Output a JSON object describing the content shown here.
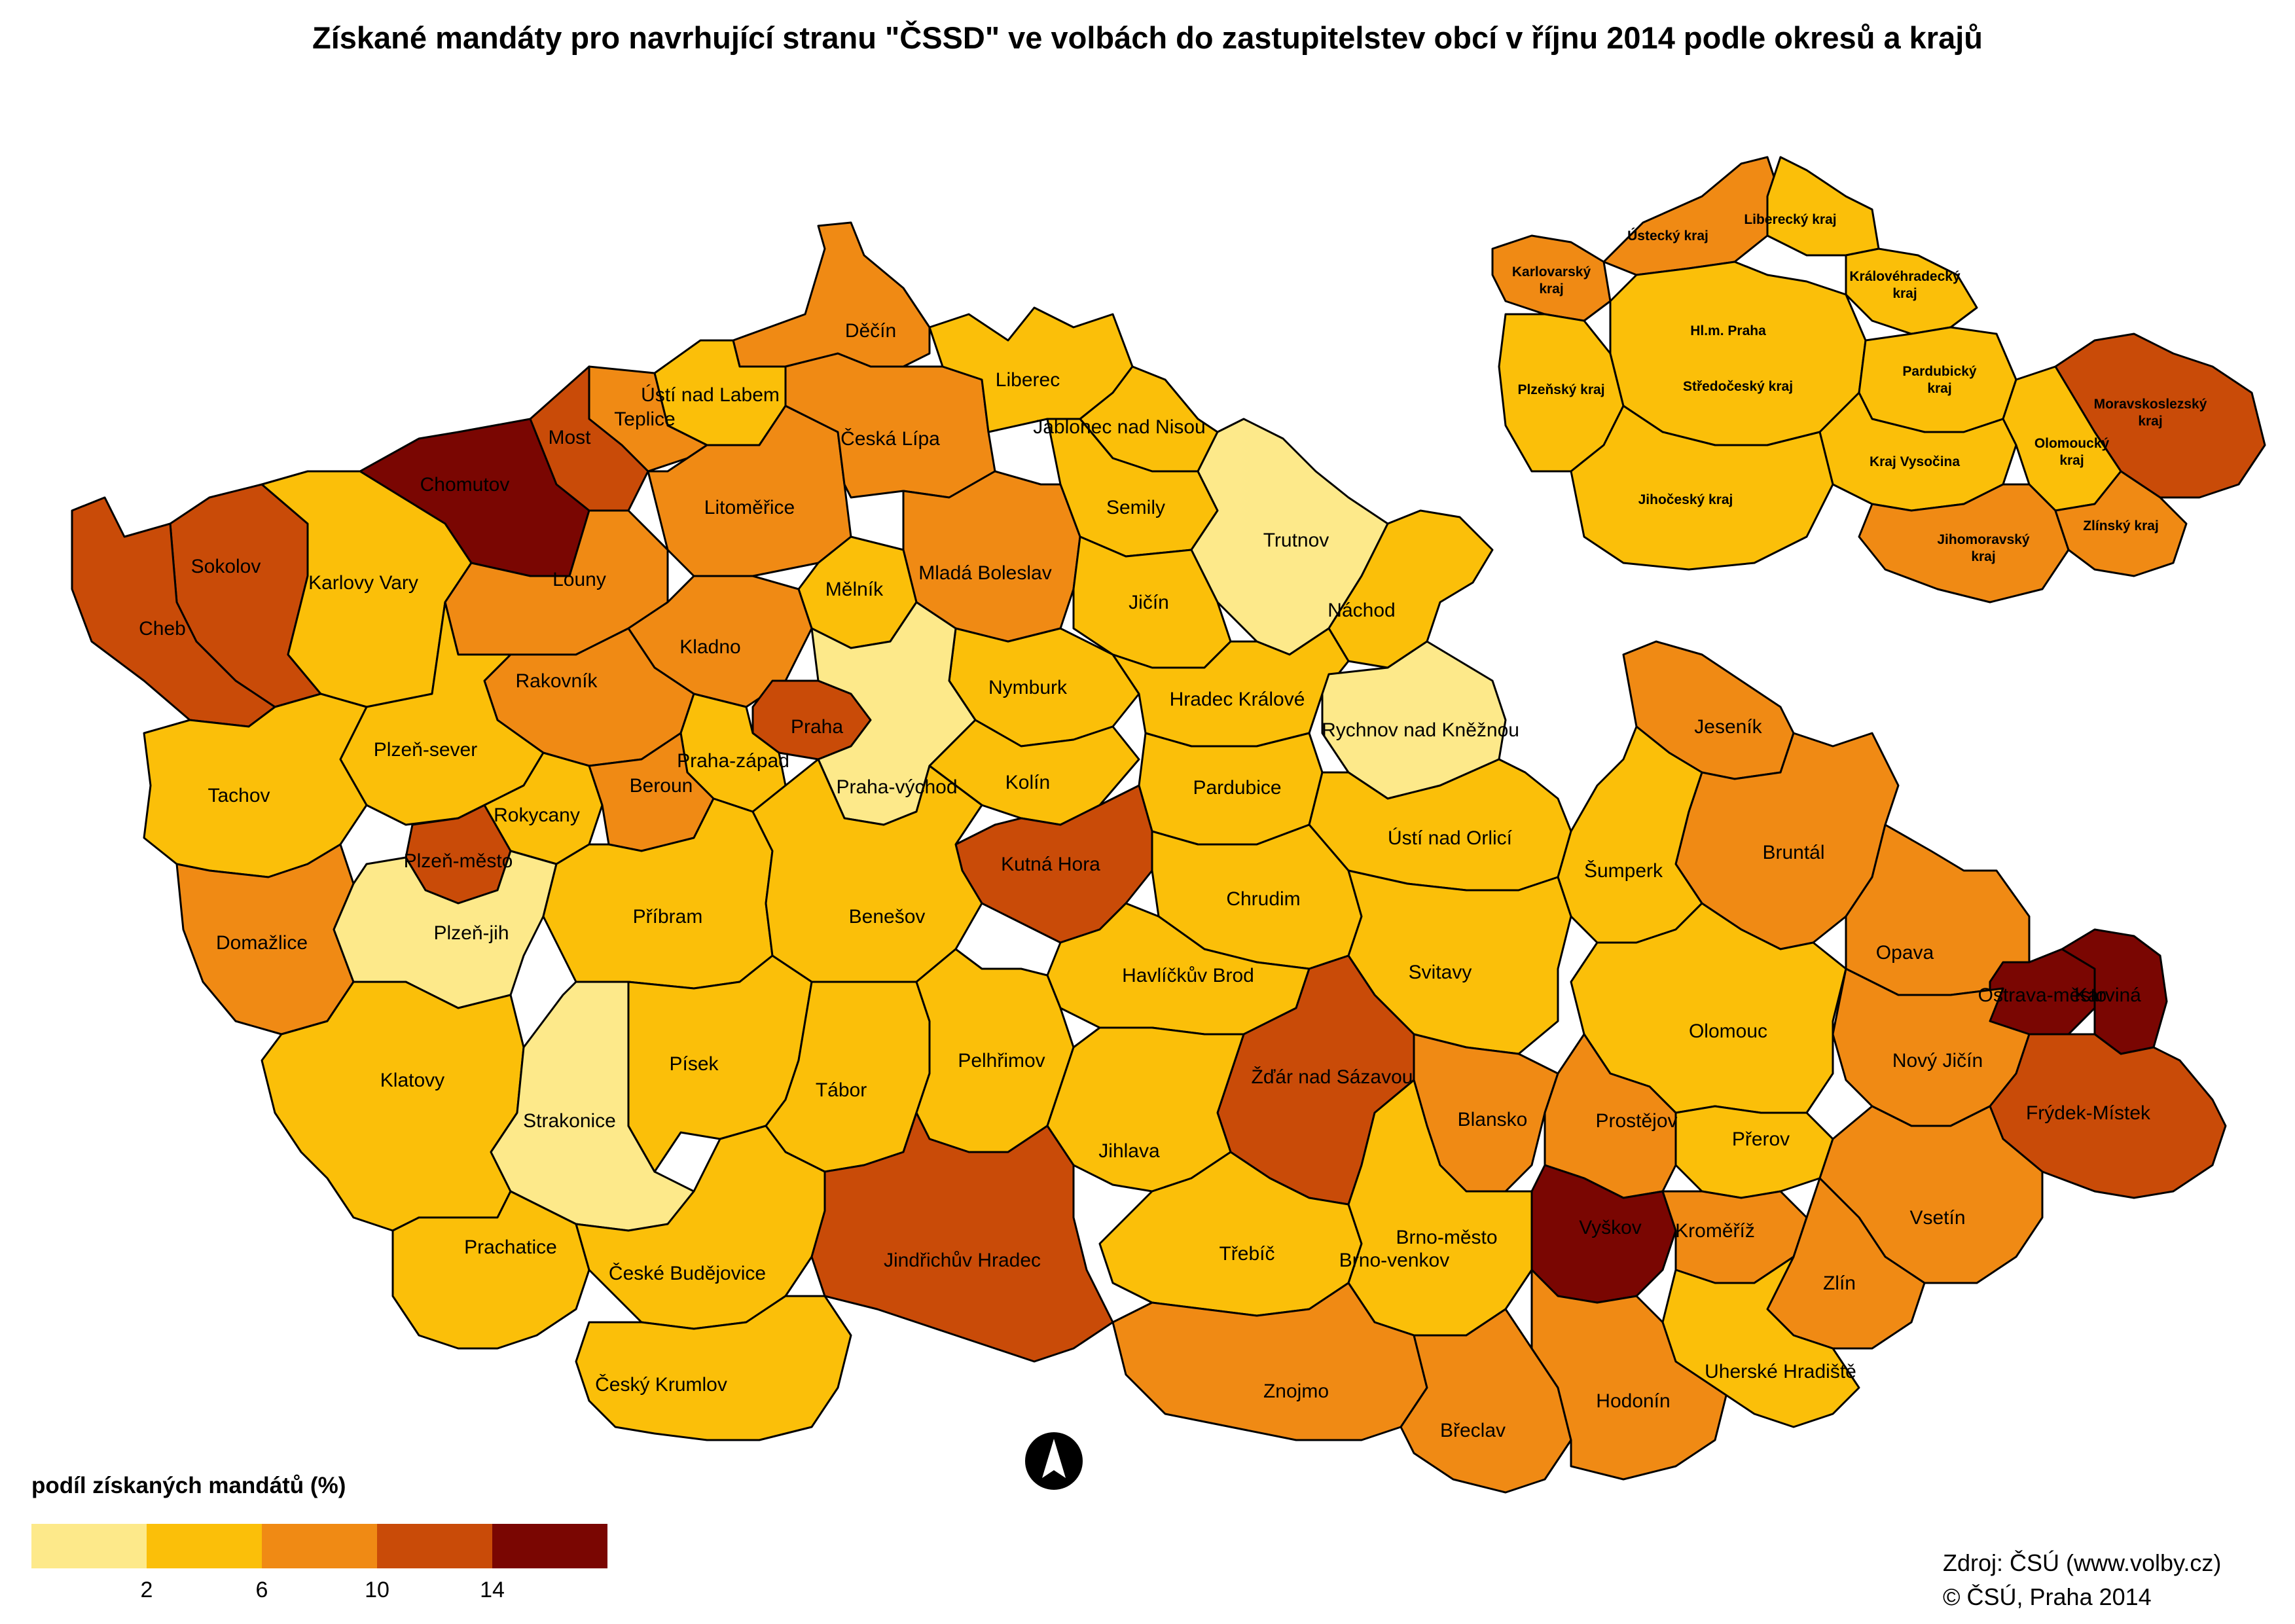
{
  "title": "Získané mandáty pro navrhující stranu \"ČSSD\" ve volbách do zastupitelstev obcí v říjnu 2014 podle okresů a krajů",
  "palette": {
    "class1": "#fde98a",
    "class2": "#fbbf09",
    "class3": "#f08a14",
    "class4": "#c94b08",
    "class5": "#7a0602"
  },
  "legend": {
    "title": "podíl získaných mandátů (%)",
    "ticks": [
      "2",
      "6",
      "10",
      "14"
    ],
    "class_colors": [
      "#fde98a",
      "#fbbf09",
      "#f08a14",
      "#c94b08",
      "#7a0602"
    ]
  },
  "source": {
    "line1": "Zdroj: ČSÚ (www.volby.cz)",
    "line2": "© ČSÚ, Praha 2014"
  },
  "north_arrow": "north-arrow-icon",
  "districts": [
    {
      "name": "Děčín",
      "class": 3
    },
    {
      "name": "Ústí nad Labem",
      "class": 2
    },
    {
      "name": "Teplice",
      "class": 3
    },
    {
      "name": "Most",
      "class": 4
    },
    {
      "name": "Chomutov",
      "class": 5
    },
    {
      "name": "Sokolov",
      "class": 4
    },
    {
      "name": "Cheb",
      "class": 4
    },
    {
      "name": "Karlovy Vary",
      "class": 2
    },
    {
      "name": "Louny",
      "class": 3
    },
    {
      "name": "Litoměřice",
      "class": 3
    },
    {
      "name": "Česká Lípa",
      "class": 3
    },
    {
      "name": "Liberec",
      "class": 2
    },
    {
      "name": "Jablonec nad Nisou",
      "class": 2
    },
    {
      "name": "Semily",
      "class": 2
    },
    {
      "name": "Trutnov",
      "class": 1
    },
    {
      "name": "Náchod",
      "class": 2
    },
    {
      "name": "Mladá Boleslav",
      "class": 3
    },
    {
      "name": "Mělník",
      "class": 2
    },
    {
      "name": "Jičín",
      "class": 2
    },
    {
      "name": "Kladno",
      "class": 3
    },
    {
      "name": "Rakovník",
      "class": 3
    },
    {
      "name": "Nymburk",
      "class": 2
    },
    {
      "name": "Hradec Králové",
      "class": 2
    },
    {
      "name": "Rychnov nad Kněžnou",
      "class": 1
    },
    {
      "name": "Praha",
      "class": 4
    },
    {
      "name": "Praha-západ",
      "class": 2
    },
    {
      "name": "Praha-východ",
      "class": 1
    },
    {
      "name": "Plzeň-sever",
      "class": 2
    },
    {
      "name": "Tachov",
      "class": 2
    },
    {
      "name": "Rokycany",
      "class": 2
    },
    {
      "name": "Beroun",
      "class": 3
    },
    {
      "name": "Kolín",
      "class": 2
    },
    {
      "name": "Pardubice",
      "class": 2
    },
    {
      "name": "Plzeň-město",
      "class": 4
    },
    {
      "name": "Kutná Hora",
      "class": 4
    },
    {
      "name": "Ústí nad Orlicí",
      "class": 2
    },
    {
      "name": "Jeseník",
      "class": 3
    },
    {
      "name": "Bruntál",
      "class": 3
    },
    {
      "name": "Šumperk",
      "class": 2
    },
    {
      "name": "Domažlice",
      "class": 3
    },
    {
      "name": "Plzeň-jih",
      "class": 1
    },
    {
      "name": "Příbram",
      "class": 2
    },
    {
      "name": "Benešov",
      "class": 2
    },
    {
      "name": "Chrudim",
      "class": 2
    },
    {
      "name": "Svitavy",
      "class": 2
    },
    {
      "name": "Opava",
      "class": 3
    },
    {
      "name": "Ostrava-město",
      "class": 5
    },
    {
      "name": "Karviná",
      "class": 5
    },
    {
      "name": "Havlíčkův Brod",
      "class": 2
    },
    {
      "name": "Olomouc",
      "class": 2
    },
    {
      "name": "Nový Jičín",
      "class": 3
    },
    {
      "name": "Frýdek-Místek",
      "class": 4
    },
    {
      "name": "Klatovy",
      "class": 2
    },
    {
      "name": "Strakonice",
      "class": 1
    },
    {
      "name": "Písek",
      "class": 2
    },
    {
      "name": "Tábor",
      "class": 2
    },
    {
      "name": "Pelhřimov",
      "class": 2
    },
    {
      "name": "Žďár nad Sázavou",
      "class": 4
    },
    {
      "name": "Blansko",
      "class": 3
    },
    {
      "name": "Prostějov",
      "class": 3
    },
    {
      "name": "Přerov",
      "class": 2
    },
    {
      "name": "Jihlava",
      "class": 2
    },
    {
      "name": "Vyškov",
      "class": 5
    },
    {
      "name": "Prachatice",
      "class": 2
    },
    {
      "name": "České Budějovice",
      "class": 2
    },
    {
      "name": "Jindřichův Hradec",
      "class": 4
    },
    {
      "name": "Třebíč",
      "class": 2
    },
    {
      "name": "Brno-město",
      "class": 5
    },
    {
      "name": "Brno-venkov",
      "class": 2
    },
    {
      "name": "Kroměříž",
      "class": 3
    },
    {
      "name": "Vsetín",
      "class": 3
    },
    {
      "name": "Zlín",
      "class": 3
    },
    {
      "name": "Český Krumlov",
      "class": 2
    },
    {
      "name": "Znojmo",
      "class": 3
    },
    {
      "name": "Břeclav",
      "class": 3
    },
    {
      "name": "Hodonín",
      "class": 3
    },
    {
      "name": "Uherské Hradiště",
      "class": 2
    }
  ],
  "regions": [
    {
      "name": "Ústecký kraj",
      "class": 3
    },
    {
      "name": "Liberecký kraj",
      "class": 2
    },
    {
      "name": "Karlovarský kraj",
      "class": 3
    },
    {
      "name": "Královéhradecký kraj",
      "class": 2
    },
    {
      "name": "Hl.m. Praha",
      "class": 4
    },
    {
      "name": "Plzeňský kraj",
      "class": 2
    },
    {
      "name": "Středočeský kraj",
      "class": 2
    },
    {
      "name": "Pardubický kraj",
      "class": 2
    },
    {
      "name": "Moravskoslezský kraj",
      "class": 4
    },
    {
      "name": "Olomoucký kraj",
      "class": 2
    },
    {
      "name": "Kraj Vysočina",
      "class": 2
    },
    {
      "name": "Jihočeský kraj",
      "class": 2
    },
    {
      "name": "Jihomoravský kraj",
      "class": 3
    },
    {
      "name": "Zlínský kraj",
      "class": 3
    }
  ]
}
